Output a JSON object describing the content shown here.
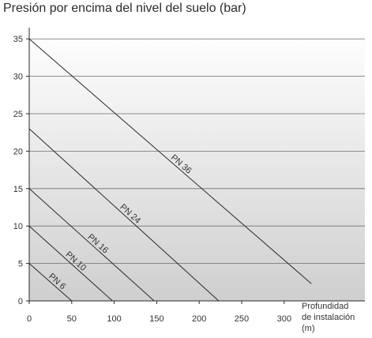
{
  "title": "Presión por encima del nivel del suelo (bar)",
  "chart_data": {
    "type": "line",
    "title": "Presión por encima del nivel del suelo (bar)",
    "xlabel_lines": [
      "Profundidad",
      "de instalación",
      "(m)"
    ],
    "ylabel": "",
    "xlim": [
      0,
      395
    ],
    "ylim": [
      0,
      36.5
    ],
    "x_ticks": [
      0,
      50,
      100,
      150,
      200,
      250,
      300
    ],
    "y_ticks": [
      0,
      5,
      10,
      15,
      20,
      25,
      30,
      35
    ],
    "grid": true,
    "legend": "none",
    "background": "vertical gradient white to grey",
    "series": [
      {
        "name": "PN 36",
        "x": [
          0,
          332
        ],
        "y": [
          35,
          2.3
        ],
        "label_at_x": 175
      },
      {
        "name": "PN 24",
        "x": [
          0,
          223
        ],
        "y": [
          23,
          0
        ],
        "label_at_x": 115
      },
      {
        "name": "PN 16",
        "x": [
          0,
          147
        ],
        "y": [
          15,
          0
        ],
        "label_at_x": 77
      },
      {
        "name": "PN 10",
        "x": [
          0,
          98
        ],
        "y": [
          10,
          0
        ],
        "label_at_x": 51
      },
      {
        "name": "PN 6",
        "x": [
          0,
          50
        ],
        "y": [
          5,
          0
        ],
        "label_at_x": 29
      }
    ]
  },
  "colors": {
    "line": "#2a2a2a",
    "grid": "#6f6f6f",
    "bg_top": "#ffffff",
    "bg_bottom": "#cfcfcf"
  }
}
